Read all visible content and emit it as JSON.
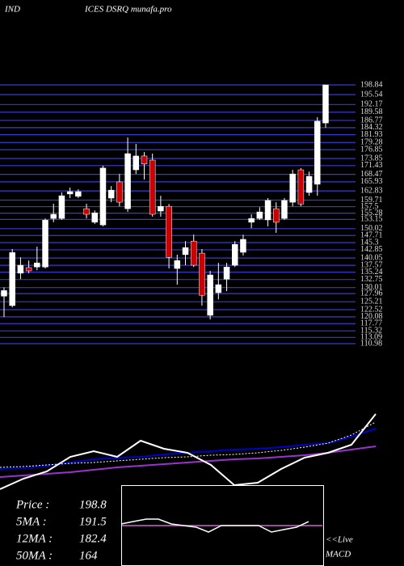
{
  "header": {
    "left": "IND",
    "right": "ICES DSRQ munafa.pro"
  },
  "chart_data": [
    {
      "type": "candlestick",
      "ylim": [
        110.98,
        198.84
      ],
      "yticks": [
        198.84,
        195.54,
        192.17,
        189.58,
        186.77,
        184.32,
        181.93,
        179.28,
        176.85,
        173.85,
        171.43,
        168.47,
        165.93,
        162.83,
        159.71,
        157.5,
        155.28,
        153.15,
        150.02,
        147.71,
        145.3,
        142.85,
        140.05,
        137.57,
        135.24,
        132.75,
        130.01,
        127.96,
        125.21,
        122.52,
        120.08,
        117.77,
        115.32,
        113.09,
        110.98
      ],
      "grid_color": "#3a3ad0",
      "up_color": "#ffffff",
      "down_color": "#cc0000",
      "open": [
        127.1,
        123.9,
        134.9,
        136.8,
        137.0,
        137.0,
        153.5,
        153.5,
        161.8,
        161.0,
        156.8,
        152.2,
        151.3,
        160.4,
        165.9,
        156.8,
        170.0,
        174.7,
        173.3,
        156.0,
        157.6,
        136.5,
        141.2,
        145.8,
        141.7,
        120.6,
        128.3,
        132.9,
        137.6,
        142.0,
        152.2,
        153.5,
        153.0,
        156.8,
        153.5,
        159.0,
        170.0,
        162.3,
        165.1,
        185.9
      ],
      "high": [
        130.1,
        143.1,
        140.3,
        139.2,
        143.9,
        153.5,
        158.5,
        162.3,
        164.0,
        163.4,
        158.5,
        156.2,
        171.4,
        164.5,
        168.6,
        181.0,
        178.8,
        176.0,
        175.5,
        161.2,
        158.4,
        141.2,
        145.8,
        148.0,
        143.1,
        135.7,
        138.4,
        138.4,
        145.8,
        148.0,
        154.9,
        157.3,
        160.4,
        159.0,
        160.4,
        170.0,
        170.6,
        169.4,
        187.9,
        198.84
      ],
      "low": [
        120.0,
        123.3,
        132.9,
        134.9,
        135.9,
        136.5,
        152.2,
        153.0,
        160.4,
        160.4,
        153.5,
        151.6,
        150.8,
        159.0,
        157.6,
        155.7,
        168.6,
        166.7,
        154.1,
        154.1,
        136.5,
        131.0,
        137.6,
        137.0,
        123.9,
        119.2,
        126.0,
        128.8,
        137.0,
        140.9,
        150.2,
        153.0,
        150.8,
        148.6,
        153.0,
        157.6,
        157.6,
        161.2,
        161.2,
        184.3
      ],
      "close": [
        129.0,
        141.9,
        137.6,
        135.7,
        138.4,
        152.9,
        154.9,
        161.2,
        162.6,
        162.6,
        154.9,
        155.4,
        170.6,
        163.1,
        159.0,
        175.5,
        174.7,
        172.0,
        154.9,
        157.6,
        140.3,
        139.2,
        143.6,
        137.6,
        127.4,
        134.3,
        131.0,
        137.0,
        144.7,
        146.4,
        153.5,
        155.7,
        159.6,
        152.2,
        159.6,
        168.6,
        158.4,
        167.8,
        186.5,
        198.84
      ]
    },
    {
      "type": "line",
      "xlim": [
        0,
        470
      ],
      "ylim": [
        0,
        110
      ],
      "x": [
        0,
        29,
        58,
        87,
        116,
        145,
        174,
        203,
        232,
        261,
        290,
        319,
        348,
        377,
        406,
        435,
        465
      ],
      "series": [
        {
          "color": "#9933cc",
          "style": "solid",
          "values": [
            20,
            22,
            24,
            26,
            29,
            32,
            34,
            36,
            38,
            40,
            42,
            43,
            45,
            47,
            50,
            54,
            58
          ]
        },
        {
          "color": "#0000cc",
          "style": "solid",
          "values": [
            30,
            31,
            34,
            38,
            42,
            44,
            45,
            48,
            50,
            52,
            54,
            55,
            57,
            60,
            62,
            70,
            80
          ]
        },
        {
          "color": "#ffffff",
          "style": "dotted",
          "values": [
            32,
            33,
            35,
            37,
            38,
            40,
            42,
            44,
            45,
            47,
            48,
            50,
            53,
            57,
            62,
            72,
            88
          ]
        },
        {
          "color": "#ffffff",
          "style": "solid",
          "values": [
            5,
            18,
            27,
            45,
            52,
            45,
            65,
            55,
            50,
            35,
            10,
            13,
            30,
            44,
            50,
            60,
            98
          ]
        }
      ]
    },
    {
      "type": "macd",
      "xlim": [
        0,
        250
      ],
      "ylim": [
        0,
        100
      ],
      "signal": 50,
      "signal_color": "#cc66cc",
      "x": [
        0,
        15,
        31,
        46,
        62,
        77,
        93,
        108,
        124,
        139,
        155,
        170,
        186,
        201,
        217,
        232
      ],
      "series": [
        {
          "color": "#ffffff",
          "values": [
            52,
            55,
            58,
            58,
            52,
            50,
            48,
            42,
            50,
            50,
            50,
            50,
            42,
            45,
            48,
            55
          ]
        }
      ]
    }
  ],
  "info": [
    {
      "label": "Price   :",
      "value": 198.8
    },
    {
      "label": "5MA :",
      "value": 191.5
    },
    {
      "label": "12MA :",
      "value": 182.4
    },
    {
      "label": "50MA :",
      "value": 164
    }
  ],
  "live": "<<Live",
  "indicator": "MACD"
}
